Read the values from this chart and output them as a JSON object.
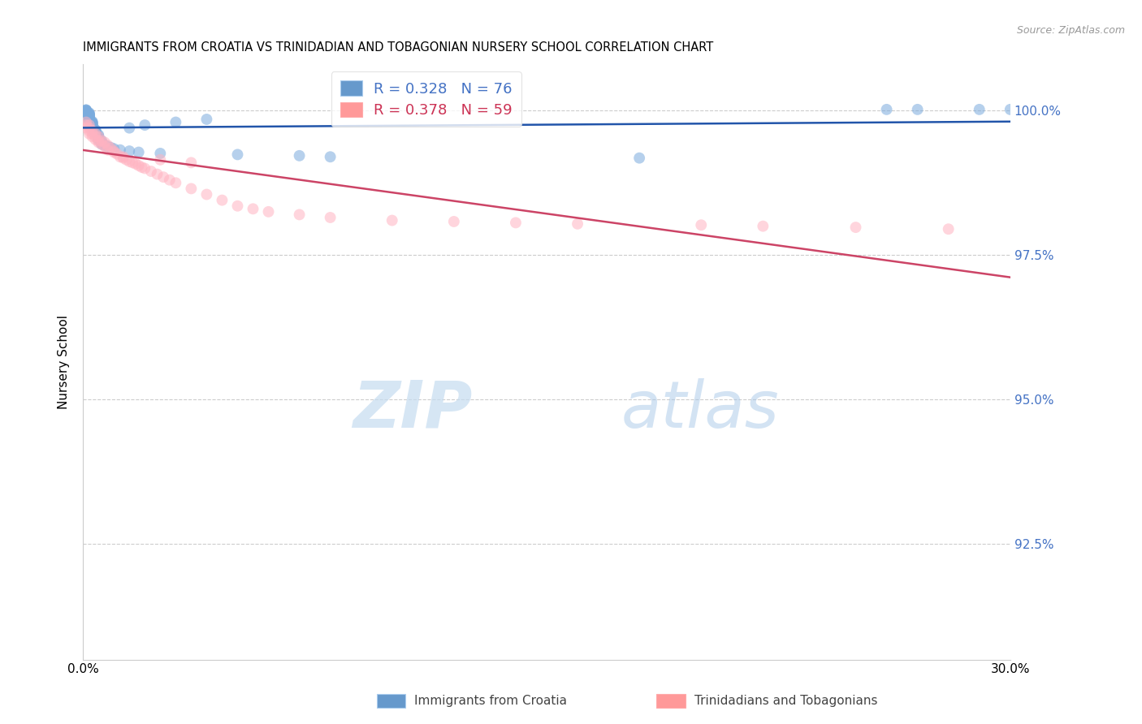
{
  "title": "IMMIGRANTS FROM CROATIA VS TRINIDADIAN AND TOBAGONIAN NURSERY SCHOOL CORRELATION CHART",
  "source": "Source: ZipAtlas.com",
  "ylabel": "Nursery School",
  "ytick_labels": [
    "100.0%",
    "97.5%",
    "95.0%",
    "92.5%"
  ],
  "ytick_values": [
    1.0,
    0.975,
    0.95,
    0.925
  ],
  "xlim": [
    0.0,
    0.3
  ],
  "ylim": [
    0.905,
    1.008
  ],
  "legend_color1": "#6699CC",
  "legend_color2": "#FF9999",
  "trendline1_color": "#2255AA",
  "trendline2_color": "#CC4466",
  "scatter1_color": "#7AABDD",
  "scatter2_color": "#FFB3C1",
  "blue_points_x": [
    0.001,
    0.001,
    0.001,
    0.001,
    0.001,
    0.001,
    0.001,
    0.001,
    0.001,
    0.001,
    0.002,
    0.002,
    0.002,
    0.002,
    0.002,
    0.002,
    0.002,
    0.002,
    0.002,
    0.002,
    0.002,
    0.002,
    0.002,
    0.002,
    0.002,
    0.003,
    0.003,
    0.003,
    0.003,
    0.003,
    0.003,
    0.003,
    0.003,
    0.003,
    0.003,
    0.003,
    0.003,
    0.003,
    0.003,
    0.004,
    0.004,
    0.004,
    0.004,
    0.004,
    0.004,
    0.004,
    0.004,
    0.005,
    0.005,
    0.005,
    0.005,
    0.005,
    0.006,
    0.006,
    0.006,
    0.007,
    0.008,
    0.009,
    0.01,
    0.012,
    0.015,
    0.018,
    0.025,
    0.05,
    0.07,
    0.08,
    0.18,
    0.26,
    0.27,
    0.29,
    0.3,
    0.015,
    0.02,
    0.03,
    0.04
  ],
  "blue_points_y": [
    1.0001,
    1.0001,
    1.0001,
    0.9999,
    0.9999,
    0.9998,
    0.9998,
    0.9997,
    0.9997,
    0.9996,
    0.9996,
    0.9995,
    0.9994,
    0.9993,
    0.9992,
    0.9991,
    0.999,
    0.9989,
    0.9988,
    0.9987,
    0.9986,
    0.9985,
    0.9984,
    0.9983,
    0.9982,
    0.9981,
    0.998,
    0.9979,
    0.9978,
    0.9977,
    0.9976,
    0.9975,
    0.9974,
    0.9973,
    0.9972,
    0.9971,
    0.997,
    0.9969,
    0.9968,
    0.9967,
    0.9966,
    0.9965,
    0.9964,
    0.9963,
    0.9962,
    0.9961,
    0.996,
    0.9958,
    0.9956,
    0.9954,
    0.9952,
    0.995,
    0.9948,
    0.9945,
    0.9942,
    0.994,
    0.9938,
    0.9936,
    0.9934,
    0.9932,
    0.993,
    0.9928,
    0.9926,
    0.9924,
    0.9922,
    0.992,
    0.9918,
    1.0002,
    1.0002,
    1.0002,
    1.0002,
    0.997,
    0.9975,
    0.998,
    0.9985
  ],
  "pink_points_x": [
    0.001,
    0.001,
    0.001,
    0.002,
    0.002,
    0.002,
    0.002,
    0.003,
    0.003,
    0.003,
    0.004,
    0.004,
    0.004,
    0.005,
    0.005,
    0.005,
    0.006,
    0.006,
    0.007,
    0.007,
    0.008,
    0.008,
    0.009,
    0.01,
    0.01,
    0.011,
    0.012,
    0.013,
    0.014,
    0.015,
    0.016,
    0.017,
    0.018,
    0.019,
    0.02,
    0.022,
    0.024,
    0.026,
    0.028,
    0.03,
    0.035,
    0.04,
    0.045,
    0.05,
    0.055,
    0.06,
    0.07,
    0.08,
    0.1,
    0.12,
    0.14,
    0.16,
    0.2,
    0.22,
    0.25,
    0.28,
    0.013,
    0.025,
    0.035
  ],
  "pink_points_y": [
    0.998,
    0.9975,
    0.997,
    0.9975,
    0.997,
    0.9965,
    0.996,
    0.9965,
    0.996,
    0.9955,
    0.996,
    0.9955,
    0.995,
    0.9955,
    0.9948,
    0.9945,
    0.9948,
    0.9942,
    0.9945,
    0.9938,
    0.994,
    0.9932,
    0.9935,
    0.993,
    0.9928,
    0.9925,
    0.992,
    0.9918,
    0.9915,
    0.9912,
    0.991,
    0.9908,
    0.9905,
    0.9902,
    0.99,
    0.9895,
    0.989,
    0.9885,
    0.988,
    0.9875,
    0.9865,
    0.9855,
    0.9845,
    0.9835,
    0.983,
    0.9825,
    0.982,
    0.9815,
    0.981,
    0.9808,
    0.9806,
    0.9804,
    0.9802,
    0.98,
    0.9798,
    0.9795,
    0.992,
    0.9915,
    0.991
  ]
}
